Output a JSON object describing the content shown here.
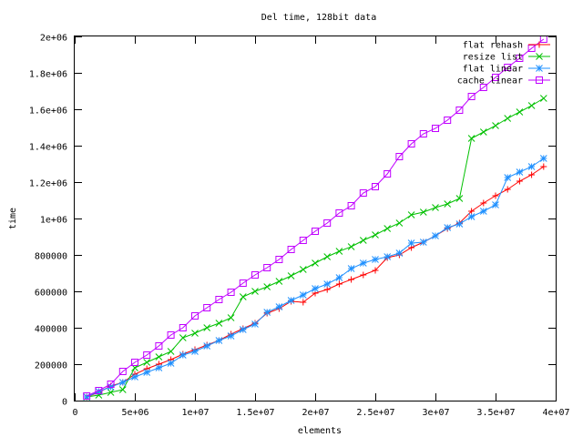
{
  "chart_data": {
    "type": "line",
    "title": "Del time, 128bit data",
    "xlabel": "elements",
    "ylabel": "time",
    "xlim": [
      0,
      40000000
    ],
    "ylim": [
      0,
      2000000
    ],
    "x_ticks": [
      0,
      5000000,
      10000000,
      15000000,
      20000000,
      25000000,
      30000000,
      35000000,
      40000000
    ],
    "x_tick_labels": [
      "0",
      "5e+06",
      "1e+07",
      "1.5e+07",
      "2e+07",
      "2.5e+07",
      "3e+07",
      "3.5e+07",
      "4e+07"
    ],
    "y_ticks": [
      0,
      200000,
      400000,
      600000,
      800000,
      1000000,
      1200000,
      1400000,
      1600000,
      1800000,
      2000000
    ],
    "y_tick_labels": [
      "0",
      "200000",
      "400000",
      "600000",
      "800000",
      "1e+06",
      "1.2e+06",
      "1.4e+06",
      "1.6e+06",
      "1.8e+06",
      "2e+06"
    ],
    "grid": false,
    "legend_position": "top-right",
    "x": [
      1000000,
      2000000,
      3000000,
      4000000,
      5000000,
      6000000,
      7000000,
      8000000,
      9000000,
      10000000,
      11000000,
      12000000,
      13000000,
      14000000,
      15000000,
      16000000,
      17000000,
      18000000,
      19000000,
      20000000,
      21000000,
      22000000,
      23000000,
      24000000,
      25000000,
      26000000,
      27000000,
      28000000,
      29000000,
      30000000,
      31000000,
      32000000,
      33000000,
      34000000,
      35000000,
      36000000,
      37000000,
      38000000,
      39000000
    ],
    "series": [
      {
        "name": "flat rehash",
        "color": "#ff0000",
        "marker": "plus",
        "values": [
          20000,
          45000,
          80000,
          100000,
          145000,
          175000,
          200000,
          225000,
          255000,
          280000,
          305000,
          330000,
          365000,
          395000,
          425000,
          480000,
          505000,
          545000,
          540000,
          590000,
          610000,
          640000,
          665000,
          690000,
          715000,
          785000,
          800000,
          840000,
          870000,
          905000,
          945000,
          975000,
          1040000,
          1085000,
          1125000,
          1160000,
          1205000,
          1240000,
          1285000
        ]
      },
      {
        "name": "resize list",
        "color": "#00c000",
        "marker": "cross",
        "values": [
          20000,
          30000,
          45000,
          60000,
          180000,
          210000,
          240000,
          270000,
          345000,
          370000,
          400000,
          425000,
          455000,
          570000,
          600000,
          625000,
          655000,
          685000,
          720000,
          755000,
          790000,
          820000,
          845000,
          880000,
          910000,
          945000,
          975000,
          1020000,
          1035000,
          1060000,
          1080000,
          1110000,
          1440000,
          1475000,
          1510000,
          1550000,
          1585000,
          1620000,
          1660000
        ]
      },
      {
        "name": "flat linear",
        "color": "#1e90ff",
        "marker": "star",
        "values": [
          20000,
          50000,
          75000,
          100000,
          130000,
          155000,
          180000,
          205000,
          250000,
          270000,
          300000,
          330000,
          355000,
          390000,
          420000,
          485000,
          515000,
          550000,
          580000,
          615000,
          640000,
          675000,
          725000,
          755000,
          775000,
          790000,
          810000,
          865000,
          870000,
          905000,
          950000,
          970000,
          1010000,
          1040000,
          1075000,
          1225000,
          1255000,
          1285000,
          1330000
        ]
      },
      {
        "name": "cache linear",
        "color": "#c000ff",
        "marker": "square",
        "values": [
          25000,
          55000,
          90000,
          160000,
          210000,
          250000,
          300000,
          360000,
          400000,
          465000,
          510000,
          555000,
          595000,
          645000,
          690000,
          730000,
          775000,
          830000,
          880000,
          930000,
          975000,
          1030000,
          1070000,
          1140000,
          1175000,
          1245000,
          1340000,
          1410000,
          1465000,
          1495000,
          1540000,
          1595000,
          1670000,
          1720000,
          1775000,
          1830000,
          1880000,
          1935000,
          1985000
        ]
      }
    ]
  }
}
